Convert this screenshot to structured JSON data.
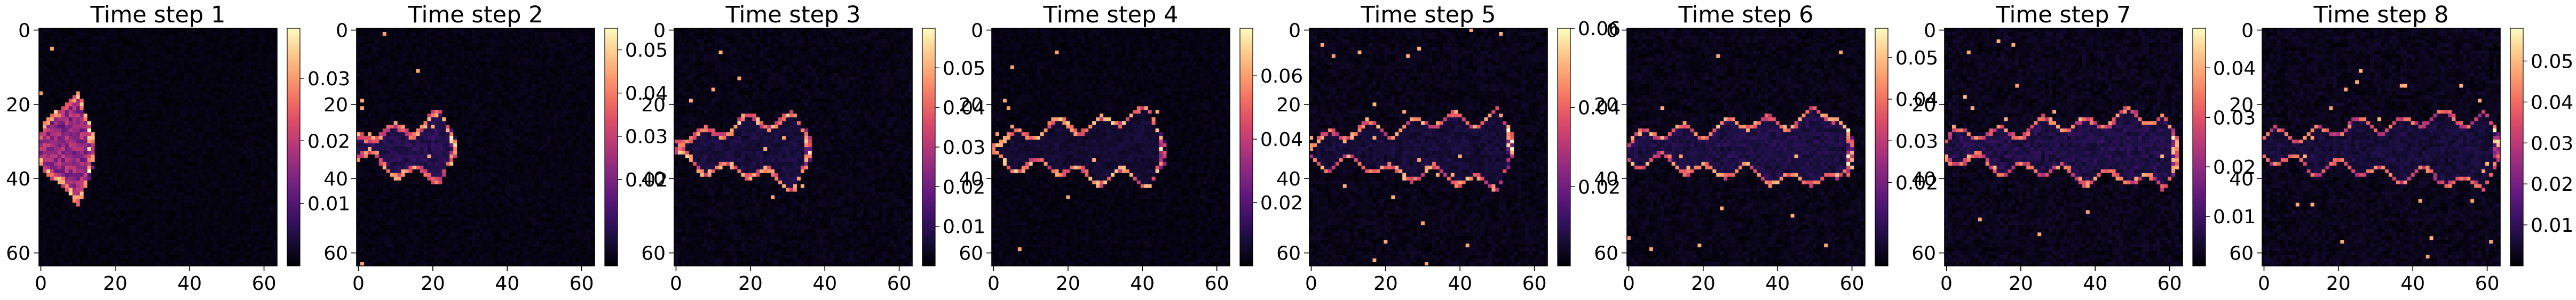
{
  "chart_data": {
    "type": "heatmap",
    "colormap": "magma",
    "grid": false,
    "colorbar_placement": "right",
    "x_range": [
      0,
      64
    ],
    "y_range": [
      64,
      0
    ],
    "x_ticks": [
      "0",
      "20",
      "40",
      "60"
    ],
    "y_ticks": [
      "0",
      "20",
      "40",
      "60"
    ],
    "panels": [
      {
        "title": "Time step 1",
        "vmin": 0.0,
        "vmax": 0.038,
        "colorbar_ticks": [
          "0.01",
          "0.02",
          "0.03"
        ],
        "colorbar_values": [
          0.01,
          0.02,
          0.03
        ],
        "front_x": 14,
        "width": 2.2,
        "body": 0.55,
        "edge": 0.9,
        "noise": 0.02
      },
      {
        "title": "Time step 2",
        "vmin": 0.0,
        "vmax": 0.055,
        "colorbar_ticks": [
          "0.02",
          "0.03",
          "0.04",
          "0.05"
        ],
        "colorbar_values": [
          0.02,
          0.03,
          0.04,
          0.05
        ],
        "front_x": 26,
        "width": 1.8,
        "body": 0.18,
        "edge": 0.85,
        "noise": 0.03
      },
      {
        "title": "Time step 3",
        "vmin": 0.0,
        "vmax": 0.06,
        "colorbar_ticks": [
          "0.01",
          "0.02",
          "0.03",
          "0.04",
          "0.05"
        ],
        "colorbar_values": [
          0.01,
          0.02,
          0.03,
          0.04,
          0.05
        ],
        "front_x": 36,
        "width": 1.5,
        "body": 0.12,
        "edge": 0.9,
        "noise": 0.04
      },
      {
        "title": "Time step 4",
        "vmin": 0.0,
        "vmax": 0.075,
        "colorbar_ticks": [
          "0.02",
          "0.04",
          "0.06"
        ],
        "colorbar_values": [
          0.02,
          0.04,
          0.06
        ],
        "front_x": 46,
        "width": 1.3,
        "body": 0.1,
        "edge": 0.9,
        "noise": 0.03
      },
      {
        "title": "Time step 5",
        "vmin": 0.0,
        "vmax": 0.06,
        "colorbar_ticks": [
          "0.02",
          "0.04",
          "0.06"
        ],
        "colorbar_values": [
          0.02,
          0.04,
          0.06
        ],
        "front_x": 54,
        "width": 1.2,
        "body": 0.1,
        "edge": 0.85,
        "noise": 0.05
      },
      {
        "title": "Time step 6",
        "vmin": 0.0,
        "vmax": 0.057,
        "colorbar_ticks": [
          "0.02",
          "0.03",
          "0.04",
          "0.05"
        ],
        "colorbar_values": [
          0.02,
          0.03,
          0.04,
          0.05
        ],
        "front_x": 60,
        "width": 1.2,
        "body": 0.14,
        "edge": 0.85,
        "noise": 0.05
      },
      {
        "title": "Time step 7",
        "vmin": 0.0,
        "vmax": 0.048,
        "colorbar_ticks": [
          "0.01",
          "0.02",
          "0.03",
          "0.04"
        ],
        "colorbar_values": [
          0.01,
          0.02,
          0.03,
          0.04
        ],
        "front_x": 62,
        "width": 1.2,
        "body": 0.14,
        "edge": 0.8,
        "noise": 0.06
      },
      {
        "title": "Time step 8",
        "vmin": 0.0,
        "vmax": 0.058,
        "colorbar_ticks": [
          "0.01",
          "0.02",
          "0.03",
          "0.04",
          "0.05"
        ],
        "colorbar_values": [
          0.01,
          0.02,
          0.03,
          0.04,
          0.05
        ],
        "front_x": 63,
        "width": 1.1,
        "body": 0.1,
        "edge": 0.75,
        "noise": 0.06
      }
    ]
  }
}
